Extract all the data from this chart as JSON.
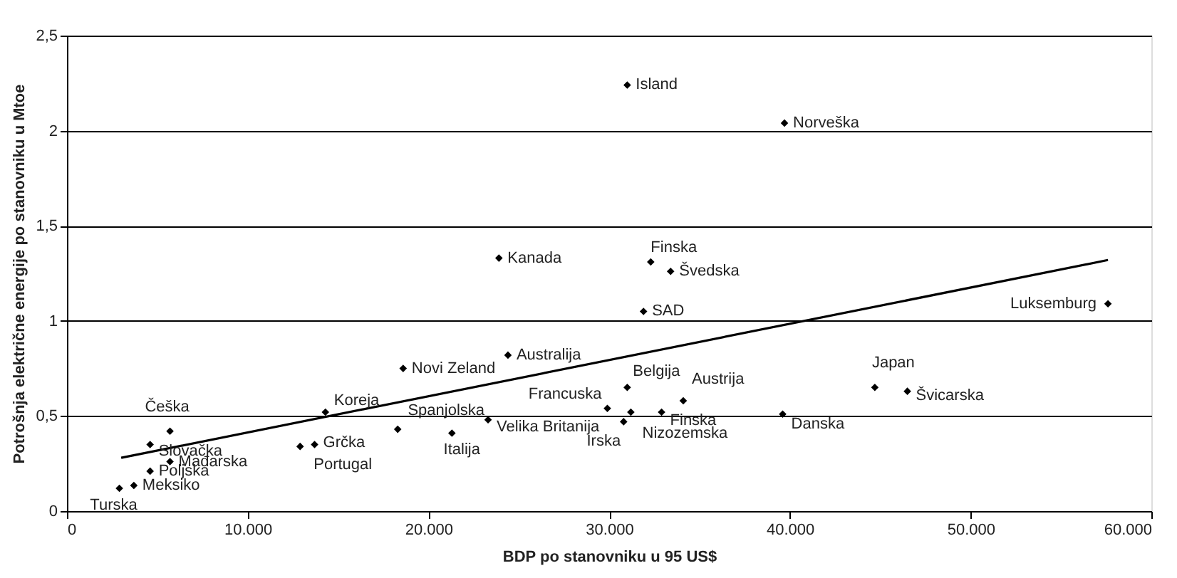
{
  "chart_data": {
    "type": "scatter",
    "xlabel": "BDP po stanovniku u 95 US$",
    "ylabel": "Potrošnja električne energije po stanovniku u Mtoe",
    "xlim": [
      0,
      60000
    ],
    "ylim": [
      0,
      2.5
    ],
    "xticks": [
      0,
      {
        "value": 10000,
        "label": "10.000"
      },
      {
        "value": 20000,
        "label": "20.000"
      },
      {
        "value": 30000,
        "label": "30.000"
      },
      {
        "value": 40000,
        "label": "40.000"
      },
      {
        "value": 50000,
        "label": "50.000"
      },
      {
        "value": 60000,
        "label": "60.000"
      }
    ],
    "yticks": [
      0,
      {
        "value": 0.5,
        "label": "0,5"
      },
      1,
      {
        "value": 1.5,
        "label": "1,5"
      },
      2,
      {
        "value": 2.5,
        "label": "2,5"
      }
    ],
    "grid": "y",
    "marker": "diamond",
    "series": [
      {
        "color": "#000000",
        "x": [
          2900,
          3700,
          4600,
          5700,
          4600,
          5700,
          12900,
          13700,
          14300,
          18600,
          24400,
          18300,
          21300,
          23300,
          29900,
          30800,
          31000,
          31200,
          32900,
          34100,
          39600,
          44700,
          46500,
          57600,
          31000,
          39700,
          23900,
          32300,
          33400,
          31900
        ],
        "values": [
          0.12,
          0.135,
          0.21,
          0.26,
          0.35,
          0.42,
          0.34,
          0.35,
          0.52,
          0.75,
          0.82,
          0.43,
          0.41,
          0.48,
          0.54,
          0.47,
          0.65,
          0.52,
          0.52,
          0.58,
          0.51,
          0.65,
          0.63,
          1.09,
          2.24,
          2.04,
          1.33,
          1.31,
          1.26,
          1.05
        ]
      },
      {
        "type": "line",
        "color": "#000000",
        "marker": "none",
        "line_style": "solid",
        "x": [
          3000,
          57600
        ],
        "values": [
          0.28,
          1.32
        ]
      }
    ],
    "annotations": [
      {
        "text": "Turska",
        "x": 2900,
        "y": 0.12
      },
      {
        "text": "Meksiko",
        "x": 3700,
        "y": 0.135
      },
      {
        "text": "Poljska",
        "x": 4600,
        "y": 0.21
      },
      {
        "text": "Mađarska",
        "x": 5700,
        "y": 0.26
      },
      {
        "text": "Slovačka",
        "x": 4600,
        "y": 0.35
      },
      {
        "text": "Češka",
        "x": 5700,
        "y": 0.42
      },
      {
        "text": "Portugal",
        "x": 12900,
        "y": 0.34
      },
      {
        "text": "Grčka",
        "x": 13700,
        "y": 0.35
      },
      {
        "text": "Koreja",
        "x": 14300,
        "y": 0.52
      },
      {
        "text": "Novi Zeland",
        "x": 18600,
        "y": 0.75
      },
      {
        "text": "Australija",
        "x": 24400,
        "y": 0.82
      },
      {
        "text": "Spanjolska",
        "x": 18300,
        "y": 0.43
      },
      {
        "text": "Italija",
        "x": 21300,
        "y": 0.41
      },
      {
        "text": "Velika Britanija",
        "x": 23300,
        "y": 0.48
      },
      {
        "text": "Francuska",
        "x": 29900,
        "y": 0.54
      },
      {
        "text": "Irska",
        "x": 30800,
        "y": 0.47
      },
      {
        "text": "Belgija",
        "x": 31000,
        "y": 0.65
      },
      {
        "text": "Nizozemska",
        "x": 31200,
        "y": 0.52
      },
      {
        "text": "Finska",
        "x": 32900,
        "y": 0.52
      },
      {
        "text": "Austrija",
        "x": 34100,
        "y": 0.58
      },
      {
        "text": "Danska",
        "x": 39600,
        "y": 0.51
      },
      {
        "text": "Japan",
        "x": 44700,
        "y": 0.65
      },
      {
        "text": "Švicarska",
        "x": 46500,
        "y": 0.63
      },
      {
        "text": "Luksemburg",
        "x": 57600,
        "y": 1.09
      },
      {
        "text": "Island",
        "x": 31000,
        "y": 2.24
      },
      {
        "text": "Norveška",
        "x": 39700,
        "y": 2.04
      },
      {
        "text": "Kanada",
        "x": 23900,
        "y": 1.33
      },
      {
        "text": "Finska",
        "x": 32300,
        "y": 1.31
      },
      {
        "text": "Švedska",
        "x": 33400,
        "y": 1.26
      },
      {
        "text": "SAD",
        "x": 31900,
        "y": 1.05
      }
    ]
  }
}
